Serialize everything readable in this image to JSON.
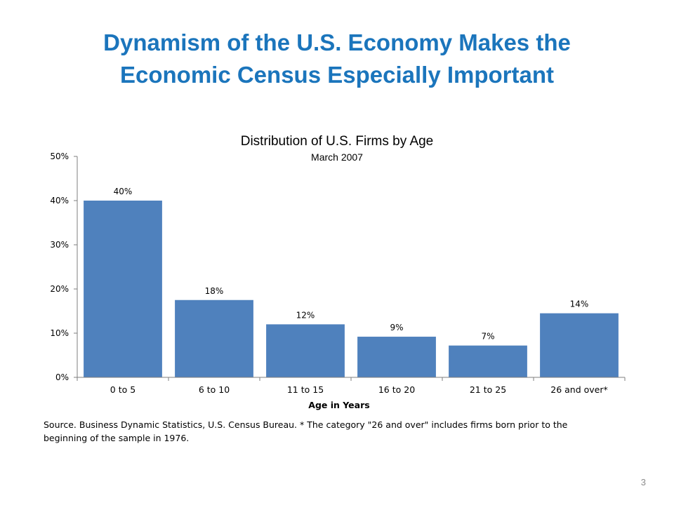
{
  "slide": {
    "title_line1": "Dynamism of the U.S. Economy Makes the",
    "title_line2": "Economic Census Especially Important",
    "source_note": "Source.  Business Dynamic Statistics, U.S. Census Bureau. * The category \"26 and over\" includes firms born prior to the beginning of the sample in 1976.",
    "page_number": "3"
  },
  "colors": {
    "title": "#1b75bc",
    "bar": "#4f81bd",
    "axis": "#7f7f7f"
  },
  "chart_data": {
    "type": "bar",
    "title": "Distribution of U.S. Firms by Age",
    "subtitle": "March 2007",
    "xlabel": "Age in Years",
    "ylabel": "",
    "categories": [
      "0 to 5",
      "6 to 10",
      "11 to 15",
      "16 to 20",
      "21 to 25",
      "26 and over*"
    ],
    "values": [
      40,
      17.5,
      12,
      9.2,
      7.2,
      14.5
    ],
    "data_labels": [
      "40%",
      "18%",
      "12%",
      "9%",
      "7%",
      "14%"
    ],
    "ylim": [
      0,
      50
    ],
    "yticks": [
      0,
      10,
      20,
      30,
      40,
      50
    ],
    "ytick_labels": [
      "0%",
      "10%",
      "20%",
      "30%",
      "40%",
      "50%"
    ],
    "grid": false,
    "legend": "none"
  }
}
